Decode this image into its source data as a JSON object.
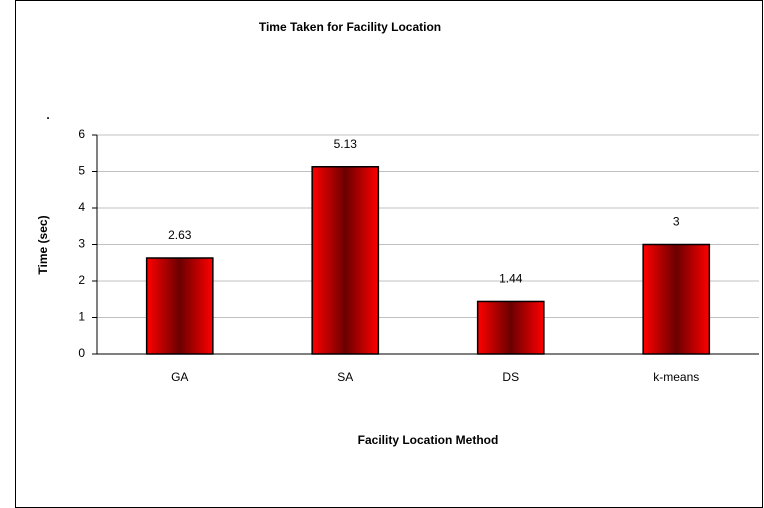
{
  "chart_data": {
    "type": "bar",
    "title": "Time Taken for Facility Location",
    "annotation": ".",
    "xlabel": "Facility Location Method",
    "ylabel": "Time (sec)",
    "categories": [
      "GA",
      "SA",
      "DS",
      "k-means"
    ],
    "values": [
      2.63,
      5.13,
      1.44,
      3
    ],
    "color": "#ff0000",
    "ylim": [
      0,
      6
    ],
    "yticks": [
      0,
      1,
      2,
      3,
      4,
      5,
      6
    ],
    "grid": true
  }
}
